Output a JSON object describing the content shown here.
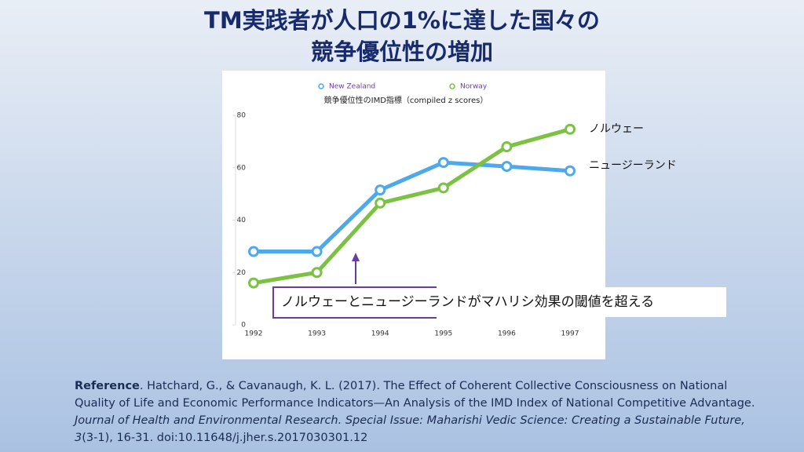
{
  "slide": {
    "title_lines": [
      "TM実践者が人口の1%に達した国々の",
      "競争優位性の増加"
    ],
    "reference": {
      "label": "Reference",
      "text": ". Hatchard, G., & Cavanaugh, K. L. (2017). The Effect of Coherent Collective Consciousness on National Quality of Life and Economic Performance Indicators—An Analysis of the IMD Index of National Competitive Advantage. ",
      "journal": "Journal of Health and Environmental Research. Special Issue: Maharishi Vedic Science: Creating a Sustainable Future, 3",
      "tail": "(3-1), 16-31. doi:10.11648/j.jher.s.2017030301.12"
    }
  },
  "chart_data": {
    "type": "line",
    "title": "競争優位性のIMD指標（compiled z scores）",
    "categories": [
      "1992",
      "1993",
      "1994",
      "1995",
      "1996",
      "1997"
    ],
    "series": [
      {
        "name": "New Zealand",
        "end_label": "ニュージーランド",
        "color": "#4ea8ec",
        "values": [
          28,
          28,
          51.5,
          62,
          60.5,
          58.8
        ]
      },
      {
        "name": "Norway",
        "end_label": "ノルウェー",
        "color": "#7cc242",
        "values": [
          16,
          20,
          46.5,
          52.3,
          68,
          74.7
        ]
      }
    ],
    "ylim": [
      0,
      80
    ],
    "yticks": [
      0,
      20,
      40,
      60,
      80
    ],
    "grid": false,
    "annotation": "ノルウェーとニュージーランドがマハリシ効果の閾値を超える"
  }
}
